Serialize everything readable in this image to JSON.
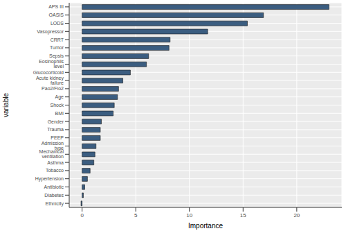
{
  "chart_data": {
    "type": "bar",
    "orientation": "horizontal",
    "x_label": "Importance",
    "y_label": "variable",
    "categories": [
      "APS III",
      "OASIS",
      "LODS",
      "Vasopressor",
      "CRRT",
      "Tumor",
      "Sepsis",
      "Eosinophils level",
      "Glucocorticoid",
      "Acute kidney failure",
      "Pao2/Fio2",
      "Age",
      "Shock",
      "BMI",
      "Gender",
      "Trauma",
      "PEEP",
      "Admission type",
      "Mechanical ventilation",
      "Asthma",
      "Tobacco",
      "Hypertension",
      "Antibiotic",
      "Diabetes",
      "Ethnicity"
    ],
    "values": [
      23.0,
      16.9,
      15.4,
      11.7,
      8.2,
      8.1,
      6.2,
      6.0,
      4.5,
      3.8,
      3.4,
      3.3,
      3.0,
      2.9,
      1.8,
      1.7,
      1.7,
      1.3,
      1.2,
      1.1,
      0.75,
      0.5,
      0.25,
      0.12,
      -0.1
    ],
    "color": "#3b5d80",
    "xlim": [
      -1.2,
      24.2
    ],
    "xticks": [
      0,
      5,
      10,
      15,
      20
    ],
    "grid": true
  }
}
